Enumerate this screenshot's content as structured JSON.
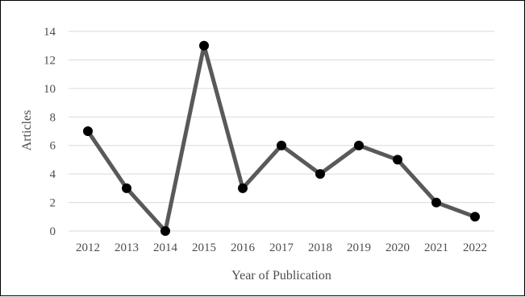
{
  "chart_data": {
    "type": "line",
    "title": "",
    "xlabel": "Year of Publication",
    "ylabel": "Articles",
    "categories": [
      "2012",
      "2013",
      "2014",
      "2015",
      "2016",
      "2017",
      "2018",
      "2019",
      "2020",
      "2021",
      "2022"
    ],
    "series": [
      {
        "values": [
          7,
          3,
          0,
          13,
          3,
          6,
          4,
          6,
          5,
          2,
          1
        ]
      }
    ],
    "ylim": [
      0,
      14
    ],
    "yticks": [
      0,
      2,
      4,
      6,
      8,
      10,
      12,
      14
    ],
    "grid": true,
    "legend": "none",
    "colors": {
      "line": "#595959",
      "marker": "#000000",
      "grid": "#d9d9d9",
      "text": "#4d4d4d"
    }
  }
}
